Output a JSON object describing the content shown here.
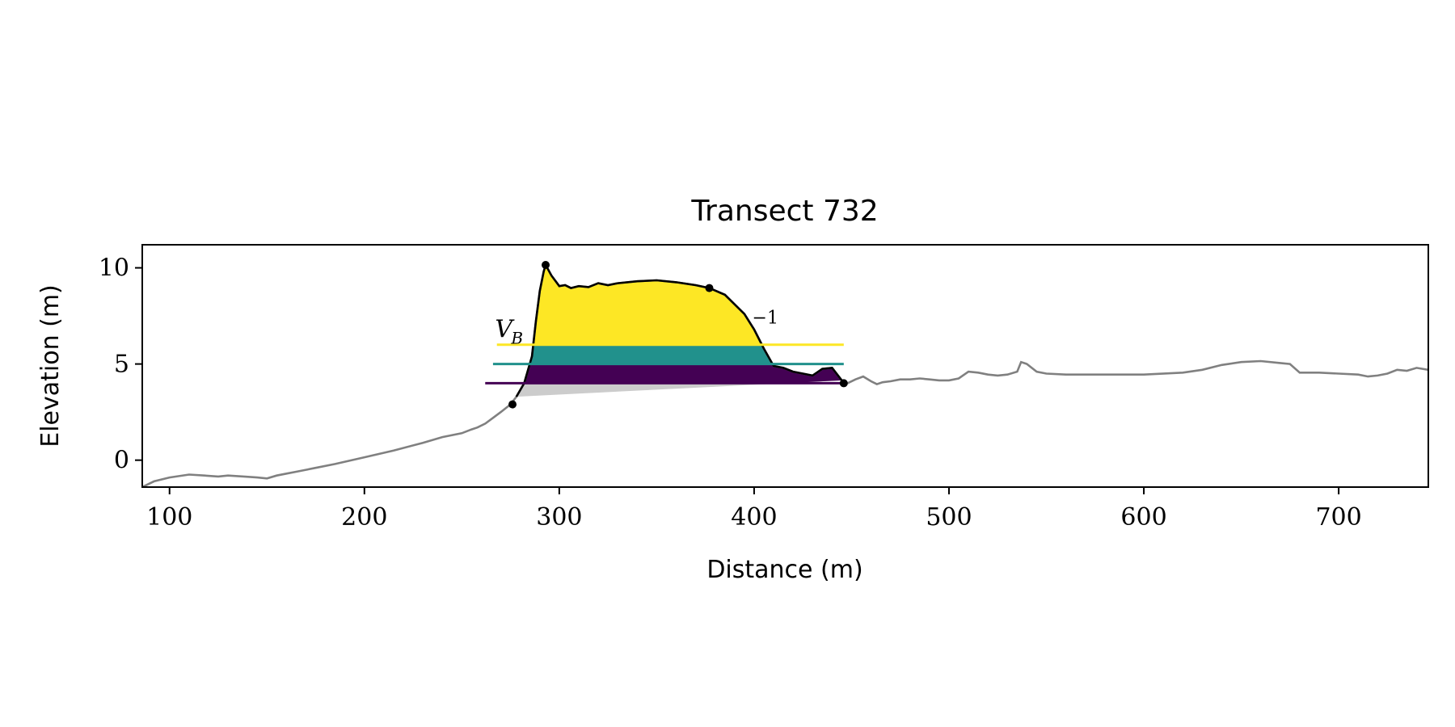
{
  "chart_data": {
    "type": "line",
    "title": "Transect 732",
    "xlabel": "Distance (m)",
    "ylabel": "Elevation (m)",
    "xlim": [
      86,
      746
    ],
    "ylim": [
      -1.4,
      11.2
    ],
    "xticks": [
      100,
      200,
      300,
      400,
      500,
      600,
      700
    ],
    "yticks": [
      0,
      5,
      10
    ],
    "grid": false,
    "legend": "none",
    "profile": {
      "color": "#808080",
      "x": [
        86,
        92,
        100,
        110,
        118,
        125,
        130,
        138,
        145,
        150,
        155,
        160,
        165,
        170,
        175,
        185,
        200,
        215,
        230,
        240,
        250,
        255,
        258,
        262,
        266,
        270,
        275,
        278,
        282,
        286,
        288,
        290,
        292,
        293,
        296,
        300,
        303,
        306,
        310,
        315,
        320,
        325,
        330,
        340,
        350,
        360,
        370,
        377,
        385,
        395,
        400,
        405,
        410,
        415,
        420,
        425,
        430,
        435,
        440,
        445,
        448,
        452,
        456,
        460,
        463,
        466,
        470,
        475,
        480,
        485,
        490,
        495,
        500,
        505,
        510,
        515,
        520,
        525,
        530,
        535,
        537,
        540,
        545,
        550,
        560,
        580,
        600,
        620,
        630,
        640,
        650,
        660,
        670,
        675,
        680,
        690,
        700,
        710,
        715,
        720,
        725,
        730,
        735,
        740,
        746
      ],
      "y": [
        -1.4,
        -1.1,
        -0.9,
        -0.75,
        -0.8,
        -0.85,
        -0.8,
        -0.85,
        -0.9,
        -0.95,
        -0.8,
        -0.7,
        -0.6,
        -0.5,
        -0.4,
        -0.2,
        0.15,
        0.5,
        0.9,
        1.2,
        1.4,
        1.6,
        1.7,
        1.9,
        2.2,
        2.5,
        2.9,
        3.3,
        4.0,
        5.4,
        7.2,
        8.8,
        9.8,
        10.15,
        9.6,
        9.05,
        9.1,
        8.95,
        9.05,
        9.0,
        9.2,
        9.1,
        9.2,
        9.3,
        9.35,
        9.25,
        9.1,
        8.95,
        8.6,
        7.6,
        6.8,
        5.8,
        4.9,
        4.8,
        4.6,
        4.5,
        4.4,
        4.75,
        4.8,
        4.15,
        4.0,
        4.2,
        4.35,
        4.1,
        3.95,
        4.05,
        4.1,
        4.2,
        4.2,
        4.25,
        4.2,
        4.15,
        4.15,
        4.25,
        4.6,
        4.55,
        4.45,
        4.4,
        4.45,
        4.6,
        5.1,
        5.0,
        4.6,
        4.5,
        4.45,
        4.45,
        4.45,
        4.55,
        4.7,
        4.95,
        5.1,
        5.15,
        5.05,
        5.0,
        4.55,
        4.55,
        4.5,
        4.45,
        4.35,
        4.4,
        4.5,
        4.7,
        4.65,
        4.8,
        4.7
      ]
    },
    "dune": {
      "toe": [
        276,
        2.9
      ],
      "crest": [
        293,
        10.15
      ],
      "mid_point": [
        377,
        8.95
      ],
      "heel": [
        446,
        4.0
      ],
      "outline_color": "#000000",
      "base_fill": "#cccccc"
    },
    "bands": [
      {
        "color": "#fde725",
        "from": 6.0,
        "to": 11
      },
      {
        "color": "#21918c",
        "from": 5.0,
        "to": 6.0
      },
      {
        "color": "#440154",
        "from": 4.0,
        "to": 5.0
      }
    ],
    "markers": [
      {
        "color": "#fde725",
        "y": 6.0,
        "x_start": 268
      },
      {
        "color": "#21918c",
        "y": 5.0,
        "x_start": 266
      },
      {
        "color": "#440154",
        "y": 4.0,
        "x_start": 262
      }
    ],
    "annotations": [
      {
        "text": "V",
        "sub": "B",
        "x": 267,
        "y": 6.4
      },
      {
        "text": "−1",
        "x": 399,
        "y": 7.1
      }
    ]
  }
}
